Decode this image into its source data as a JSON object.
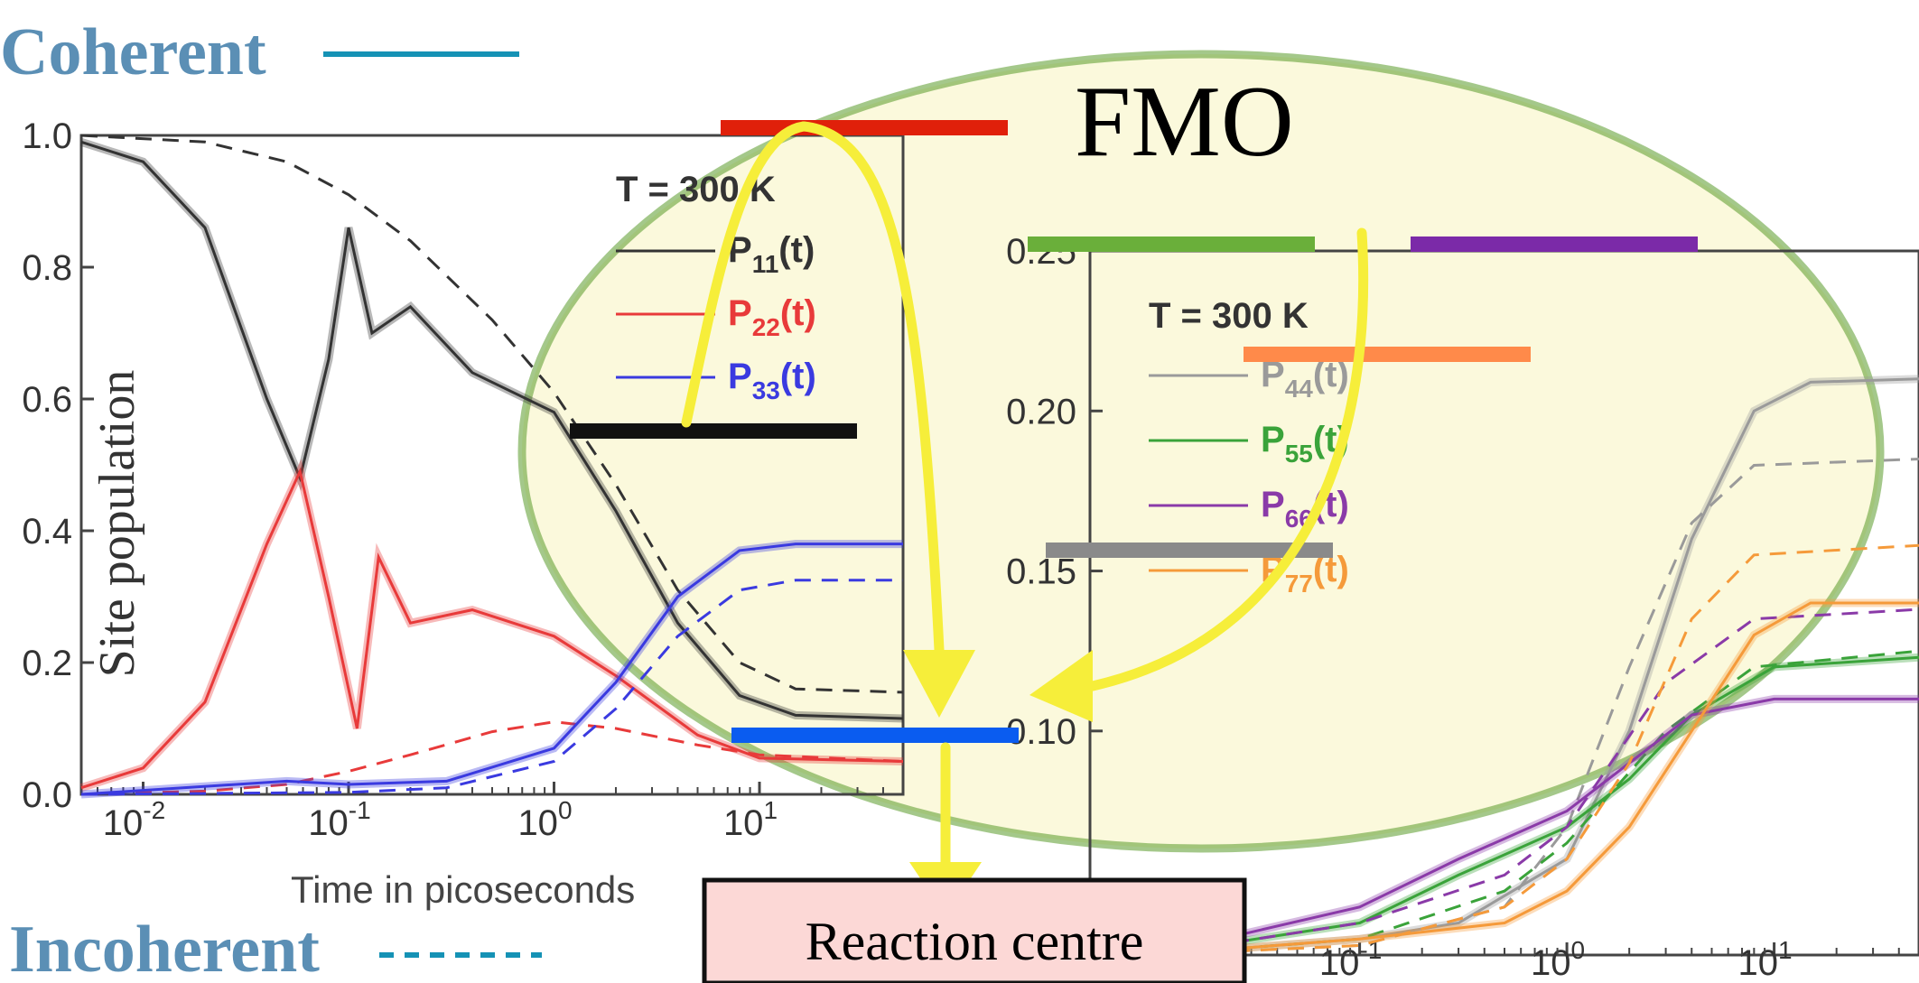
{
  "header": {
    "coherent_label": "Coherent",
    "incoherent_label": "Incoherent",
    "coherent_color": "#1592b5",
    "label_color": "#5b8fb5"
  },
  "fmo": {
    "title": "FMO",
    "reaction_centre": "Reaction centre",
    "ellipse_fill": "#fbf9dc",
    "ellipse_stroke": "#5a9a2a",
    "arrow_color": "#f6ee3a",
    "levels": [
      {
        "name": "site-1",
        "color": "#e0200a"
      },
      {
        "name": "site-2",
        "color": "#111111"
      },
      {
        "name": "site-3",
        "color": "#0a5cf0"
      },
      {
        "name": "site-4",
        "color": "#8a8a8a"
      },
      {
        "name": "site-5",
        "color": "#6aaf3a"
      },
      {
        "name": "site-6",
        "color": "#7b2aa8"
      },
      {
        "name": "site-7",
        "color": "#ff8a4a"
      }
    ]
  },
  "chart_data": [
    {
      "type": "line",
      "xscale": "log",
      "xlim": [
        0.005,
        50
      ],
      "ylim": [
        0,
        1
      ],
      "xlabel": "Time in picoseconds",
      "ylabel": "Site population",
      "yticks": [
        "0.0",
        "0.2",
        "0.4",
        "0.6",
        "0.8",
        "1.0"
      ],
      "xticks": [
        {
          "base": "10",
          "exp": "-2"
        },
        {
          "base": "10",
          "exp": "-1"
        },
        {
          "base": "10",
          "exp": "0"
        },
        {
          "base": "10",
          "exp": "1"
        }
      ],
      "annotation": "T = 300 K",
      "legend_position": "top-right",
      "series": [
        {
          "name": "P11(t)",
          "label_main": "P",
          "label_sub": "11",
          "label_tail": "(t)",
          "color": "#333333",
          "coherent": [
            [
              0.005,
              0.99
            ],
            [
              0.01,
              0.96
            ],
            [
              0.02,
              0.86
            ],
            [
              0.04,
              0.6
            ],
            [
              0.058,
              0.48
            ],
            [
              0.08,
              0.66
            ],
            [
              0.1,
              0.86
            ],
            [
              0.13,
              0.7
            ],
            [
              0.2,
              0.74
            ],
            [
              0.4,
              0.64
            ],
            [
              1,
              0.58
            ],
            [
              2,
              0.43
            ],
            [
              4,
              0.26
            ],
            [
              8,
              0.15
            ],
            [
              15,
              0.12
            ],
            [
              50,
              0.115
            ]
          ],
          "incoherent": [
            [
              0.005,
              1.0
            ],
            [
              0.02,
              0.99
            ],
            [
              0.05,
              0.96
            ],
            [
              0.1,
              0.91
            ],
            [
              0.2,
              0.84
            ],
            [
              0.5,
              0.72
            ],
            [
              1,
              0.61
            ],
            [
              2,
              0.47
            ],
            [
              4,
              0.31
            ],
            [
              8,
              0.2
            ],
            [
              15,
              0.16
            ],
            [
              50,
              0.155
            ]
          ]
        },
        {
          "name": "P22(t)",
          "label_main": "P",
          "label_sub": "22",
          "label_tail": "(t)",
          "color": "#e83a3a",
          "coherent": [
            [
              0.005,
              0.01
            ],
            [
              0.01,
              0.04
            ],
            [
              0.02,
              0.14
            ],
            [
              0.04,
              0.38
            ],
            [
              0.058,
              0.49
            ],
            [
              0.08,
              0.3
            ],
            [
              0.11,
              0.1
            ],
            [
              0.14,
              0.36
            ],
            [
              0.2,
              0.26
            ],
            [
              0.4,
              0.28
            ],
            [
              1,
              0.24
            ],
            [
              2,
              0.18
            ],
            [
              5,
              0.09
            ],
            [
              10,
              0.055
            ],
            [
              50,
              0.05
            ]
          ],
          "incoherent": [
            [
              0.005,
              0.0
            ],
            [
              0.02,
              0.005
            ],
            [
              0.05,
              0.015
            ],
            [
              0.1,
              0.035
            ],
            [
              0.2,
              0.06
            ],
            [
              0.5,
              0.095
            ],
            [
              1,
              0.11
            ],
            [
              2,
              0.1
            ],
            [
              5,
              0.075
            ],
            [
              10,
              0.06
            ],
            [
              50,
              0.05
            ]
          ]
        },
        {
          "name": "P33(t)",
          "label_main": "P",
          "label_sub": "33",
          "label_tail": "(t)",
          "color": "#3a3ae0",
          "coherent": [
            [
              0.005,
              0.0
            ],
            [
              0.05,
              0.02
            ],
            [
              0.1,
              0.015
            ],
            [
              0.3,
              0.02
            ],
            [
              1,
              0.07
            ],
            [
              2,
              0.17
            ],
            [
              4,
              0.3
            ],
            [
              8,
              0.37
            ],
            [
              15,
              0.38
            ],
            [
              50,
              0.38
            ]
          ],
          "incoherent": [
            [
              0.005,
              0.0
            ],
            [
              0.1,
              0.003
            ],
            [
              0.3,
              0.01
            ],
            [
              1,
              0.05
            ],
            [
              2,
              0.13
            ],
            [
              4,
              0.24
            ],
            [
              8,
              0.31
            ],
            [
              15,
              0.325
            ],
            [
              50,
              0.325
            ]
          ]
        }
      ]
    },
    {
      "type": "line",
      "xscale": "log",
      "xlim": [
        0.005,
        50
      ],
      "ylim": [
        0.03,
        0.25
      ],
      "yticks": [
        "0.05",
        "0.10",
        "0.15",
        "0.20",
        "0.25"
      ],
      "xticks": [
        {
          "base": "10",
          "exp": "-1"
        },
        {
          "base": "10",
          "exp": "0"
        },
        {
          "base": "10",
          "exp": "1"
        }
      ],
      "annotation": "T = 300 K",
      "legend_position": "top-left",
      "series": [
        {
          "name": "P44(t)",
          "label_main": "P",
          "label_sub": "44",
          "label_tail": "(t)",
          "color": "#9a9a9a",
          "coherent": [
            [
              0.01,
              0.03
            ],
            [
              0.1,
              0.035
            ],
            [
              0.3,
              0.04
            ],
            [
              1,
              0.06
            ],
            [
              2,
              0.1
            ],
            [
              4,
              0.16
            ],
            [
              8,
              0.2
            ],
            [
              15,
              0.209
            ],
            [
              50,
              0.21
            ]
          ],
          "incoherent": [
            [
              0.01,
              0.03
            ],
            [
              0.1,
              0.033
            ],
            [
              0.5,
              0.045
            ],
            [
              1,
              0.07
            ],
            [
              2,
              0.12
            ],
            [
              4,
              0.165
            ],
            [
              8,
              0.183
            ],
            [
              50,
              0.185
            ]
          ]
        },
        {
          "name": "P55(t)",
          "label_main": "P",
          "label_sub": "55",
          "label_tail": "(t)",
          "color": "#3aa33a",
          "coherent": [
            [
              0.01,
              0.03
            ],
            [
              0.1,
              0.04
            ],
            [
              0.3,
              0.055
            ],
            [
              1,
              0.07
            ],
            [
              2,
              0.085
            ],
            [
              4,
              0.105
            ],
            [
              10,
              0.12
            ],
            [
              50,
              0.123
            ]
          ],
          "incoherent": [
            [
              0.01,
              0.03
            ],
            [
              0.1,
              0.035
            ],
            [
              0.5,
              0.05
            ],
            [
              1,
              0.065
            ],
            [
              3,
              0.1
            ],
            [
              8,
              0.12
            ],
            [
              50,
              0.125
            ]
          ]
        },
        {
          "name": "P66(t)",
          "label_main": "P",
          "label_sub": "66",
          "label_tail": "(t)",
          "color": "#8a3aa8",
          "coherent": [
            [
              0.01,
              0.03
            ],
            [
              0.1,
              0.045
            ],
            [
              0.3,
              0.06
            ],
            [
              1,
              0.075
            ],
            [
              2,
              0.09
            ],
            [
              4,
              0.105
            ],
            [
              10,
              0.11
            ],
            [
              50,
              0.11
            ]
          ],
          "incoherent": [
            [
              0.01,
              0.03
            ],
            [
              0.1,
              0.04
            ],
            [
              0.5,
              0.055
            ],
            [
              1,
              0.07
            ],
            [
              3,
              0.115
            ],
            [
              8,
              0.135
            ],
            [
              50,
              0.138
            ]
          ]
        },
        {
          "name": "P77(t)",
          "label_main": "P",
          "label_sub": "77",
          "label_tail": "(t)",
          "color": "#f59a3a",
          "coherent": [
            [
              0.01,
              0.03
            ],
            [
              0.1,
              0.035
            ],
            [
              0.5,
              0.04
            ],
            [
              1,
              0.05
            ],
            [
              2,
              0.07
            ],
            [
              4,
              0.1
            ],
            [
              8,
              0.13
            ],
            [
              15,
              0.14
            ],
            [
              50,
              0.14
            ]
          ],
          "incoherent": [
            [
              0.01,
              0.03
            ],
            [
              0.1,
              0.033
            ],
            [
              0.5,
              0.045
            ],
            [
              1,
              0.06
            ],
            [
              2,
              0.09
            ],
            [
              4,
              0.135
            ],
            [
              8,
              0.155
            ],
            [
              50,
              0.158
            ]
          ]
        }
      ]
    }
  ]
}
